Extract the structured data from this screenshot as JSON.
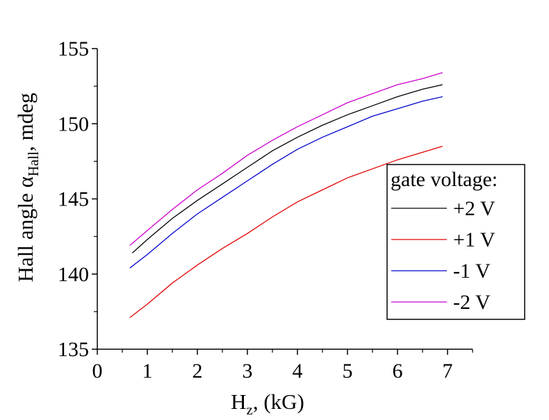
{
  "chart_data": {
    "type": "line",
    "xlabel": "H",
    "xlabel_sub": "z",
    "xlabel_suffix": ", (kG)",
    "ylabel": "Hall angle α",
    "ylabel_sub": "Hall",
    "ylabel_suffix": ", mdeg",
    "xlim": [
      0,
      7.5
    ],
    "ylim": [
      135,
      155
    ],
    "xticks": [
      "0",
      "1",
      "2",
      "3",
      "4",
      "5",
      "6",
      "7"
    ],
    "yticks": [
      "135",
      "140",
      "145",
      "150",
      "155"
    ],
    "grid": false,
    "legend": {
      "title": "gate voltage:",
      "placement": "center-right"
    },
    "series": [
      {
        "name": "+2 V",
        "color": "#000000",
        "x": [
          0.7,
          1.0,
          1.5,
          2.0,
          2.5,
          3.0,
          3.5,
          4.0,
          4.5,
          5.0,
          5.5,
          6.0,
          6.5,
          6.9
        ],
        "y": [
          141.4,
          142.3,
          143.7,
          144.9,
          146.0,
          147.1,
          148.2,
          149.1,
          149.9,
          150.6,
          151.2,
          151.8,
          152.3,
          152.6
        ]
      },
      {
        "name": "+1 V",
        "color": "#e00000",
        "x": [
          0.65,
          1.0,
          1.5,
          2.0,
          2.5,
          3.0,
          3.5,
          4.0,
          4.5,
          5.0,
          5.5,
          6.0,
          6.5,
          6.9
        ],
        "y": [
          137.1,
          138.0,
          139.4,
          140.6,
          141.7,
          142.7,
          143.8,
          144.8,
          145.6,
          146.4,
          147.0,
          147.6,
          148.1,
          148.5
        ]
      },
      {
        "name": "-1 V",
        "color": "#0000cc",
        "x": [
          0.65,
          1.0,
          1.5,
          2.0,
          2.5,
          3.0,
          3.5,
          4.0,
          4.5,
          5.0,
          5.5,
          6.0,
          6.5,
          6.9
        ],
        "y": [
          140.4,
          141.3,
          142.7,
          144.0,
          145.1,
          146.2,
          147.3,
          148.3,
          149.1,
          149.8,
          150.5,
          151.0,
          151.5,
          151.8
        ]
      },
      {
        "name": "-2 V",
        "color": "#cc00cc",
        "x": [
          0.65,
          1.0,
          1.5,
          2.0,
          2.5,
          3.0,
          3.5,
          4.0,
          4.5,
          5.0,
          5.5,
          6.0,
          6.5,
          6.9
        ],
        "y": [
          141.9,
          142.9,
          144.3,
          145.6,
          146.7,
          147.9,
          148.9,
          149.8,
          150.6,
          151.4,
          152.0,
          152.6,
          153.0,
          153.4
        ]
      }
    ]
  }
}
